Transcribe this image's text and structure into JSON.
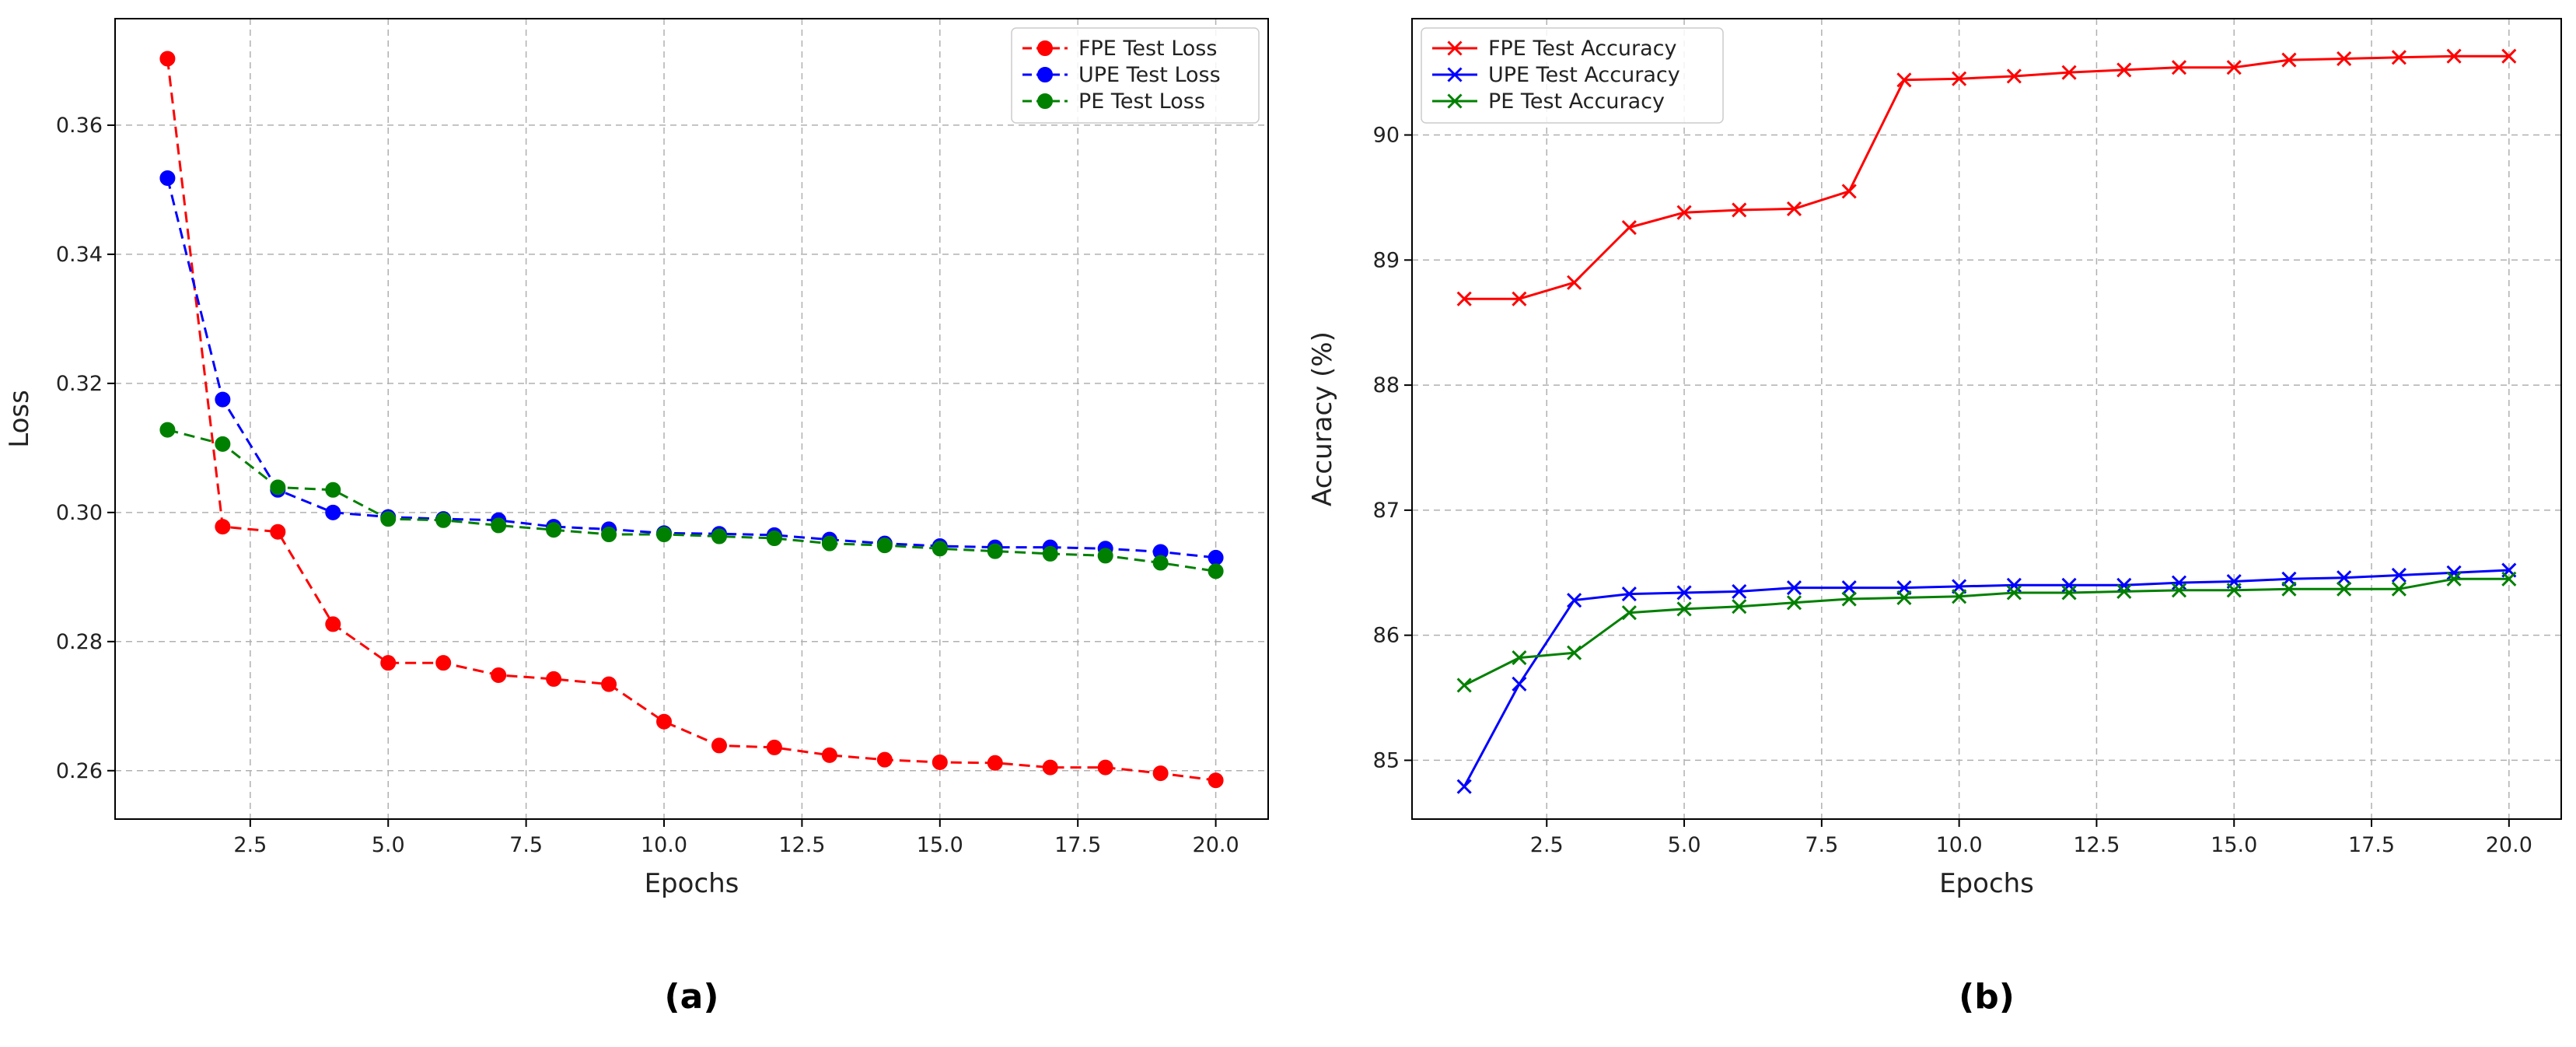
{
  "chart_data": [
    {
      "type": "line",
      "title": "",
      "panel_label": "(a)",
      "xlabel": "Epochs",
      "ylabel": "Loss",
      "xlim": [
        0.05,
        20.95
      ],
      "ylim": [
        0.2525,
        0.3765
      ],
      "xticks": [
        2.5,
        5.0,
        7.5,
        10.0,
        12.5,
        15.0,
        17.5,
        20.0
      ],
      "xtick_labels": [
        "2.5",
        "5.0",
        "7.5",
        "10.0",
        "12.5",
        "15.0",
        "17.5",
        "20.0"
      ],
      "yticks": [
        0.26,
        0.28,
        0.3,
        0.32,
        0.34,
        0.36
      ],
      "ytick_labels": [
        "0.26",
        "0.28",
        "0.30",
        "0.32",
        "0.34",
        "0.36"
      ],
      "grid": true,
      "legend_position": "top-right",
      "marker": "circle",
      "linestyle": "dashed",
      "x": [
        1,
        2,
        3,
        4,
        5,
        6,
        7,
        8,
        9,
        10,
        11,
        12,
        13,
        14,
        15,
        16,
        17,
        18,
        19,
        20
      ],
      "series": [
        {
          "name": "FPE Test Loss",
          "color": "#ff0000",
          "values": [
            0.3703,
            0.2978,
            0.297,
            0.2827,
            0.2767,
            0.2767,
            0.2748,
            0.2742,
            0.2734,
            0.2676,
            0.2639,
            0.2636,
            0.2624,
            0.2617,
            0.2613,
            0.2612,
            0.2605,
            0.2605,
            0.2596,
            0.2585
          ]
        },
        {
          "name": "UPE Test Loss",
          "color": "#0000ff",
          "values": [
            0.3518,
            0.3175,
            0.3035,
            0.3,
            0.2993,
            0.299,
            0.2988,
            0.2978,
            0.2974,
            0.2968,
            0.2967,
            0.2965,
            0.2958,
            0.2952,
            0.2948,
            0.2946,
            0.2946,
            0.2944,
            0.2939,
            0.293
          ]
        },
        {
          "name": "PE Test Loss",
          "color": "#008000",
          "values": [
            0.3128,
            0.3106,
            0.3039,
            0.3035,
            0.299,
            0.2988,
            0.298,
            0.2973,
            0.2966,
            0.2966,
            0.2963,
            0.296,
            0.2952,
            0.2949,
            0.2944,
            0.294,
            0.2936,
            0.2933,
            0.2922,
            0.2909
          ]
        }
      ]
    },
    {
      "type": "line",
      "title": "",
      "panel_label": "(b)",
      "xlabel": "Epochs",
      "ylabel": "Accuracy (%)",
      "xlim": [
        0.05,
        20.95
      ],
      "ylim": [
        84.53,
        90.93
      ],
      "xticks": [
        2.5,
        5.0,
        7.5,
        10.0,
        12.5,
        15.0,
        17.5,
        20.0
      ],
      "xtick_labels": [
        "2.5",
        "5.0",
        "7.5",
        "10.0",
        "12.5",
        "15.0",
        "17.5",
        "20.0"
      ],
      "yticks": [
        85,
        86,
        87,
        88,
        89,
        90
      ],
      "ytick_labels": [
        "85",
        "86",
        "87",
        "88",
        "89",
        "90"
      ],
      "grid": true,
      "legend_position": "top-left",
      "marker": "x",
      "linestyle": "solid",
      "x": [
        1,
        2,
        3,
        4,
        5,
        6,
        7,
        8,
        9,
        10,
        11,
        12,
        13,
        14,
        15,
        16,
        17,
        18,
        19,
        20
      ],
      "series": [
        {
          "name": "FPE Test Accuracy",
          "color": "#ff0000",
          "values": [
            88.69,
            88.69,
            88.82,
            89.26,
            89.38,
            89.4,
            89.41,
            89.55,
            90.44,
            90.45,
            90.47,
            90.5,
            90.52,
            90.54,
            90.54,
            90.6,
            90.61,
            90.62,
            90.63,
            90.63
          ]
        },
        {
          "name": "UPE Test Accuracy",
          "color": "#0000ff",
          "values": [
            84.79,
            85.61,
            86.28,
            86.33,
            86.34,
            86.35,
            86.38,
            86.38,
            86.38,
            86.39,
            86.4,
            86.4,
            86.4,
            86.42,
            86.43,
            86.45,
            86.46,
            86.48,
            86.5,
            86.52
          ]
        },
        {
          "name": "PE Test Accuracy",
          "color": "#008000",
          "values": [
            85.6,
            85.82,
            85.86,
            86.18,
            86.21,
            86.23,
            86.26,
            86.29,
            86.3,
            86.31,
            86.34,
            86.34,
            86.35,
            86.36,
            86.36,
            86.37,
            86.37,
            86.37,
            86.45,
            86.45
          ]
        }
      ]
    }
  ]
}
